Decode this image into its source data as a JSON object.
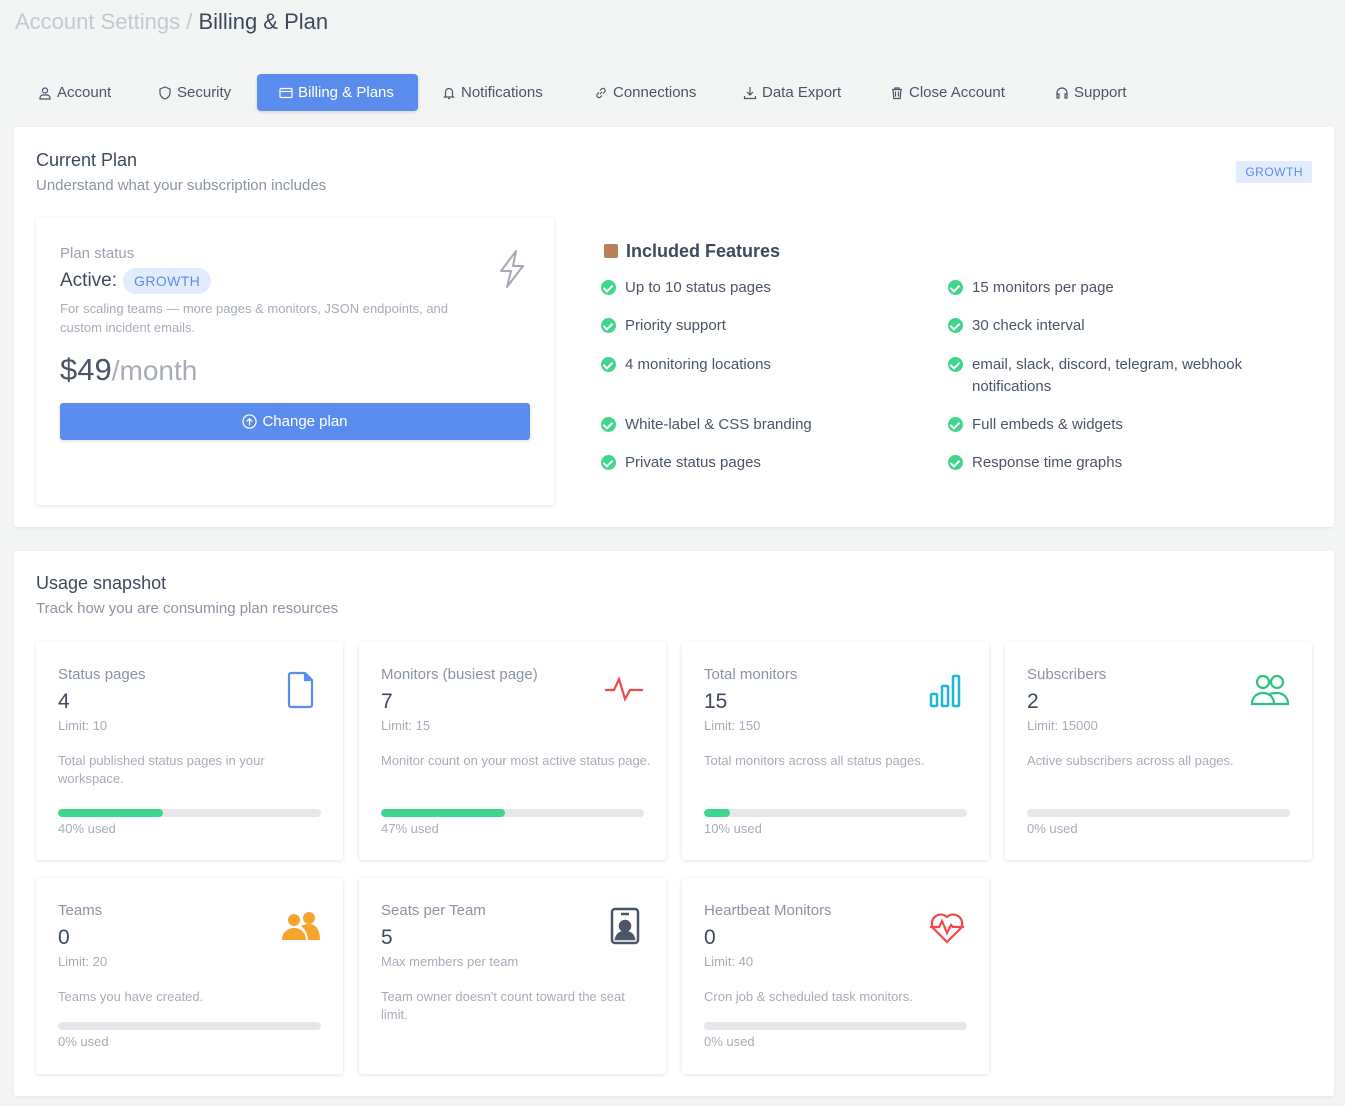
{
  "breadcrumb": {
    "parent": "Account Settings",
    "separator": "/",
    "current": "Billing & Plan"
  },
  "tabs": [
    {
      "label": "Account",
      "icon": "user-icon"
    },
    {
      "label": "Security",
      "icon": "shield-icon"
    },
    {
      "label": "Billing & Plans",
      "icon": "credit-card-icon",
      "active": true
    },
    {
      "label": "Notifications",
      "icon": "bell-icon"
    },
    {
      "label": "Connections",
      "icon": "link-icon"
    },
    {
      "label": "Data Export",
      "icon": "download-icon"
    },
    {
      "label": "Close Account",
      "icon": "trash-icon"
    },
    {
      "label": "Support",
      "icon": "headset-icon"
    }
  ],
  "current_plan": {
    "title": "Current Plan",
    "subtitle": "Understand what your subscription includes",
    "badge": "GROWTH",
    "status_label": "Plan status",
    "active_label": "Active:",
    "plan_name": "GROWTH",
    "description": "For scaling teams — more pages & monitors, JSON endpoints, and custom incident emails.",
    "price": "$49",
    "period": "/month",
    "change_button": "Change plan",
    "features_title": "Included Features",
    "features": [
      "Up to 10 status pages",
      "15 monitors per page",
      "Priority support",
      "30 check interval",
      "4 monitoring locations",
      "email, slack, discord, telegram, webhook notifications",
      "White-label & CSS branding",
      "Full embeds & widgets",
      "Private status pages",
      "Response time graphs"
    ]
  },
  "usage": {
    "title": "Usage snapshot",
    "subtitle": "Track how you are consuming plan resources",
    "cards": [
      {
        "title": "Status pages",
        "value": "4",
        "limit": "Limit: 10",
        "desc": "Total published status pages in your workspace.",
        "percent": 40,
        "used": "40% used",
        "icon": "document-icon",
        "color": "#5b8def"
      },
      {
        "title": "Monitors (busiest page)",
        "value": "7",
        "limit": "Limit: 15",
        "desc": "Monitor count on your most active status page.",
        "percent": 47,
        "used": "47% used",
        "icon": "pulse-icon",
        "color": "#f24848"
      },
      {
        "title": "Total monitors",
        "value": "15",
        "limit": "Limit: 150",
        "desc": "Total monitors across all status pages.",
        "percent": 10,
        "used": "10% used",
        "icon": "bar-chart-icon",
        "color": "#1ab8d6"
      },
      {
        "title": "Subscribers",
        "value": "2",
        "limit": "Limit: 15000",
        "desc": "Active subscribers across all pages.",
        "percent": 0,
        "used": "0% used",
        "icon": "users-icon",
        "color": "#2ec27e"
      },
      {
        "title": "Teams",
        "value": "0",
        "limit": "Limit: 20",
        "desc": "Teams you have created.",
        "percent": 0,
        "used": "0% used",
        "icon": "team-icon",
        "color": "#f6a330"
      },
      {
        "title": "Seats per Team",
        "value": "5",
        "limit": "Max members per team",
        "desc": "Team owner doesn't count toward the seat limit.",
        "icon": "id-badge-icon",
        "color": "#4a5568"
      },
      {
        "title": "Heartbeat Monitors",
        "value": "0",
        "limit": "Limit: 40",
        "desc": "Cron job & scheduled task monitors.",
        "percent": 0,
        "used": "0% used",
        "icon": "heartbeat-icon",
        "color": "#f24848"
      }
    ]
  }
}
